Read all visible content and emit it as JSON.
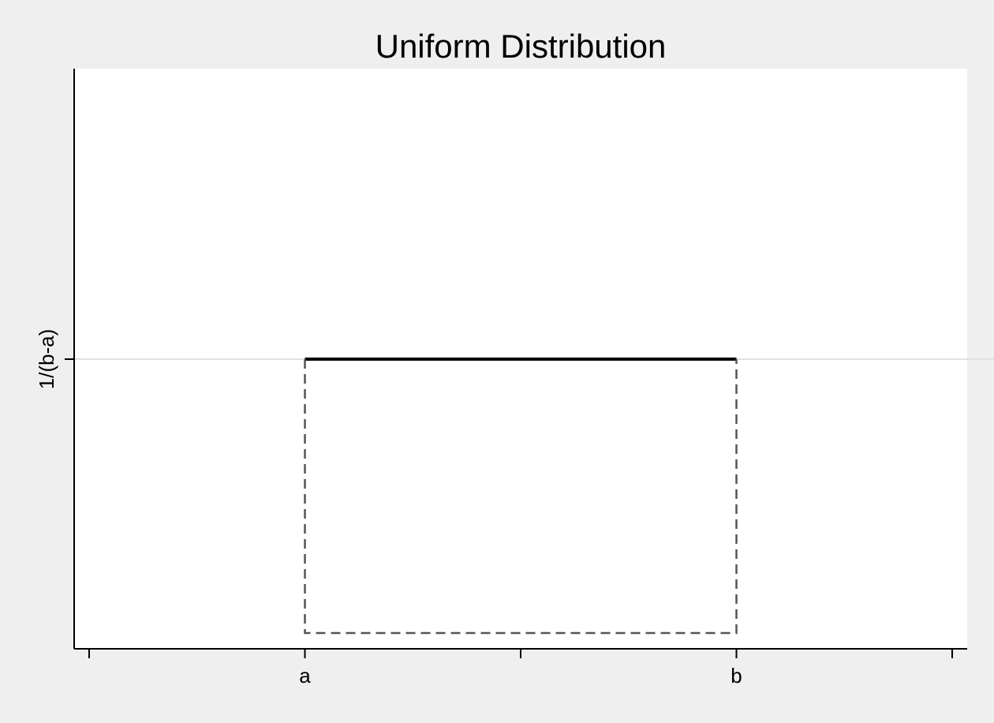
{
  "chart_data": {
    "type": "line",
    "title": "Uniform Distribution",
    "xlabel": "",
    "ylabel": "",
    "x_ticks": [
      {
        "value": 0,
        "label": ""
      },
      {
        "value": 1,
        "label": "a"
      },
      {
        "value": 2,
        "label": ""
      },
      {
        "value": 3,
        "label": "b"
      },
      {
        "value": 4,
        "label": ""
      }
    ],
    "y_ticks": [
      {
        "value": 1,
        "label": "1/(b-a)"
      }
    ],
    "xlim": [
      0,
      4
    ],
    "ylim": [
      0,
      2
    ],
    "grid": "horizontal line at y tick",
    "series": [
      {
        "style": "solid",
        "color": "#000000",
        "points": [
          {
            "x": 1,
            "y": 1
          },
          {
            "x": 3,
            "y": 1
          }
        ]
      },
      {
        "style": "dashed",
        "color": "#555555",
        "points": [
          {
            "x": 1,
            "y": 1
          },
          {
            "x": 1,
            "y": 0
          },
          {
            "x": 3,
            "y": 0
          },
          {
            "x": 3,
            "y": 1
          }
        ]
      }
    ]
  },
  "colors": {
    "background": "#efefef",
    "plot_area": "#ffffff",
    "gridline": "#e2e2e2",
    "axis": "#000000"
  }
}
